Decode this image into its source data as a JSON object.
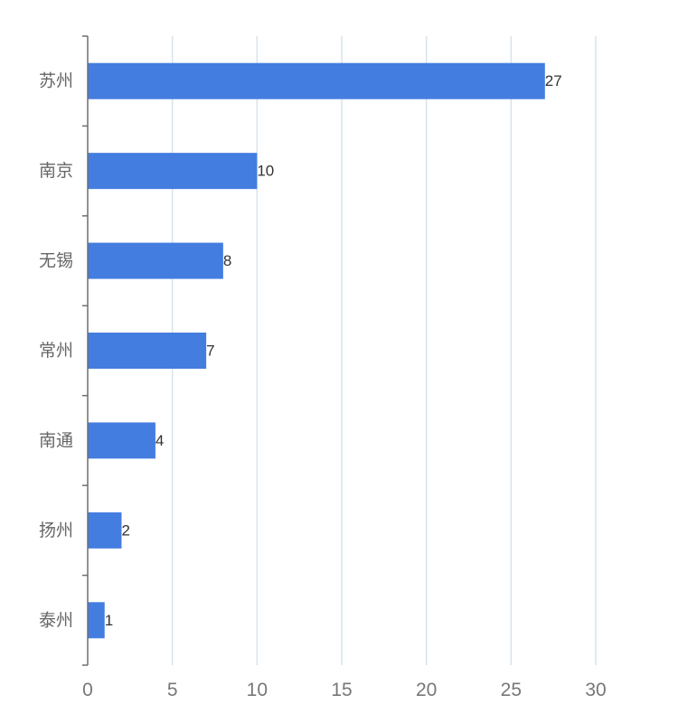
{
  "chart_data": {
    "type": "bar",
    "orientation": "horizontal",
    "title": "",
    "xlabel": "",
    "ylabel": "",
    "categories": [
      "苏州",
      "南京",
      "无锡",
      "常州",
      "南通",
      "扬州",
      "泰州"
    ],
    "values": [
      27,
      10,
      8,
      7,
      4,
      2,
      1
    ],
    "xlim": [
      0,
      30
    ],
    "xticks": [
      0,
      5,
      10,
      15,
      20,
      25,
      30
    ],
    "xtick_labels": [
      "0",
      "5",
      "10",
      "15",
      "20",
      "25",
      "30"
    ],
    "data_labels": [
      "27",
      "10",
      "8",
      "7",
      "4",
      "2",
      "1"
    ],
    "grid": "vertical",
    "colors": {
      "bar": "#447de0",
      "grid": "#d6e3ec",
      "axis": "#6e6e6e"
    }
  }
}
